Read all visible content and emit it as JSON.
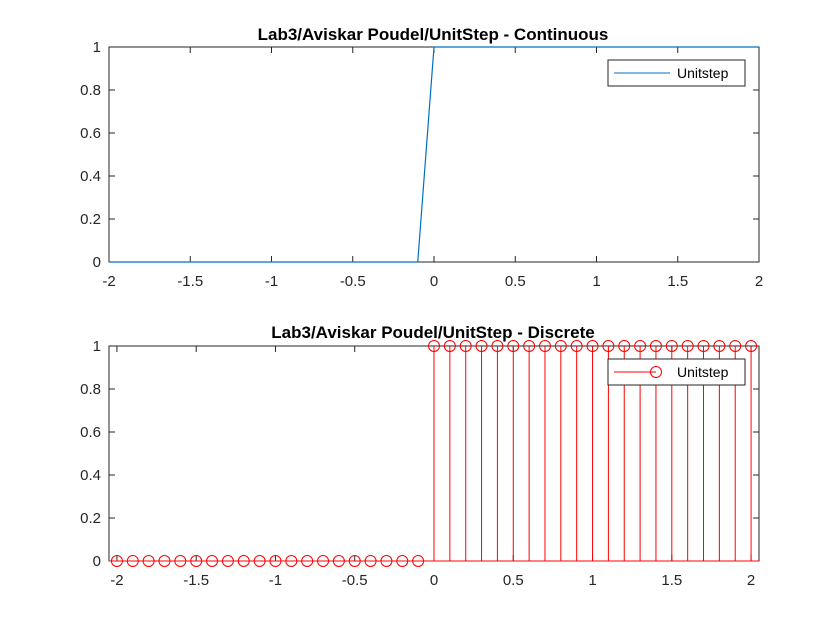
{
  "chart_data": [
    {
      "type": "line",
      "title": "Lab3/Aviskar Poudel/UnitStep - Continuous",
      "xlabel": "",
      "ylabel": "",
      "xlim": [
        -2,
        2
      ],
      "ylim": [
        0,
        1
      ],
      "xticks": [
        "-2",
        "-1.5",
        "-1",
        "-0.5",
        "0",
        "0.5",
        "1",
        "1.5",
        "2"
      ],
      "yticks": [
        "0",
        "0.2",
        "0.4",
        "0.6",
        "0.8",
        "1"
      ],
      "grid": false,
      "legend_position": "top-right",
      "series": [
        {
          "name": "Unitstep",
          "color": "#0072BD",
          "x": [
            -2,
            -1.9,
            -1.8,
            -1.7,
            -1.6,
            -1.5,
            -1.4,
            -1.3,
            -1.2,
            -1.1,
            -1,
            -0.9,
            -0.8,
            -0.7,
            -0.6,
            -0.5,
            -0.4,
            -0.3,
            -0.2,
            -0.1,
            0,
            0.1,
            0.2,
            0.3,
            0.4,
            0.5,
            0.6,
            0.7,
            0.8,
            0.9,
            1,
            1.1,
            1.2,
            1.3,
            1.4,
            1.5,
            1.6,
            1.7,
            1.8,
            1.9,
            2
          ],
          "y": [
            0,
            0,
            0,
            0,
            0,
            0,
            0,
            0,
            0,
            0,
            0,
            0,
            0,
            0,
            0,
            0,
            0,
            0,
            0,
            0,
            1,
            1,
            1,
            1,
            1,
            1,
            1,
            1,
            1,
            1,
            1,
            1,
            1,
            1,
            1,
            1,
            1,
            1,
            1,
            1,
            1
          ]
        }
      ]
    },
    {
      "type": "stem",
      "title": "Lab3/Aviskar Poudel/UnitStep - Discrete",
      "xlabel": "",
      "ylabel": "",
      "xlim": [
        -2.05,
        2.05
      ],
      "ylim": [
        0,
        1
      ],
      "xticks": [
        "-2",
        "-1.5",
        "-1",
        "-0.5",
        "0",
        "0.5",
        "1",
        "1.5",
        "2"
      ],
      "yticks": [
        "0",
        "0.2",
        "0.4",
        "0.6",
        "0.8",
        "1"
      ],
      "grid": false,
      "legend_position": "top-right",
      "series": [
        {
          "name": "Unitstep",
          "color": "#FF0000",
          "marker": "circle",
          "x": [
            -2,
            -1.9,
            -1.8,
            -1.7,
            -1.6,
            -1.5,
            -1.4,
            -1.3,
            -1.2,
            -1.1,
            -1,
            -0.9,
            -0.8,
            -0.7,
            -0.6,
            -0.5,
            -0.4,
            -0.3,
            -0.2,
            -0.1,
            0,
            0.1,
            0.2,
            0.3,
            0.4,
            0.5,
            0.6,
            0.7,
            0.8,
            0.9,
            1,
            1.1,
            1.2,
            1.3,
            1.4,
            1.5,
            1.6,
            1.7,
            1.8,
            1.9,
            2
          ],
          "y": [
            0,
            0,
            0,
            0,
            0,
            0,
            0,
            0,
            0,
            0,
            0,
            0,
            0,
            0,
            0,
            0,
            0,
            0,
            0,
            0,
            1,
            1,
            1,
            1,
            1,
            1,
            1,
            1,
            1,
            1,
            1,
            1,
            1,
            1,
            1,
            1,
            1,
            1,
            1,
            1,
            1
          ]
        }
      ]
    }
  ]
}
